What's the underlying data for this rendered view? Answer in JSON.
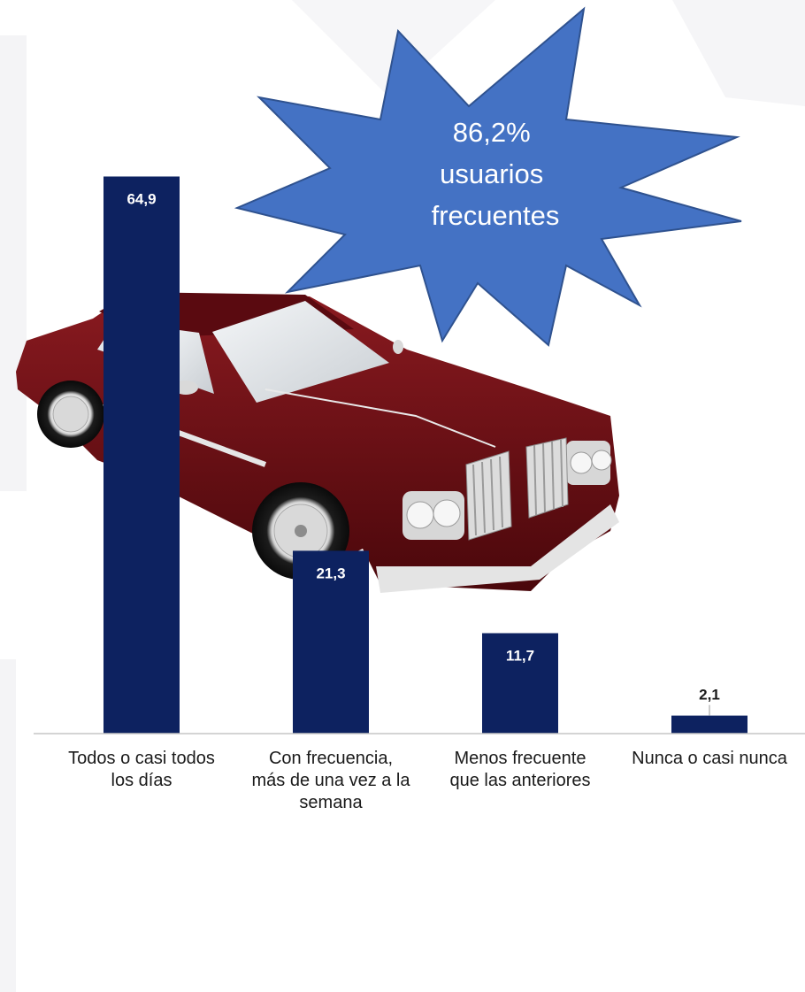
{
  "callout": {
    "lines": [
      "86,2%",
      "usuarios",
      "frecuentes"
    ],
    "fill": "#4472C4",
    "stroke": "#2F528F"
  },
  "picture": {
    "subject": "car-illustration",
    "body_color": "#6B0F14"
  },
  "chart_data": {
    "type": "bar",
    "categories": [
      [
        "Todos o casi todos",
        "los días"
      ],
      [
        "Con frecuencia,",
        "más de una vez a la",
        "semana"
      ],
      [
        "Menos frecuente",
        "que las anteriores"
      ],
      [
        "Nunca o casi nunca"
      ]
    ],
    "values": [
      64.9,
      21.3,
      11.7,
      2.1
    ],
    "value_labels": [
      "64,9",
      "21,3",
      "11,7",
      "2,1"
    ],
    "ylim": [
      0,
      70
    ],
    "grid": false,
    "bar_color": "#0D2260",
    "title": "",
    "xlabel": "",
    "ylabel": ""
  }
}
